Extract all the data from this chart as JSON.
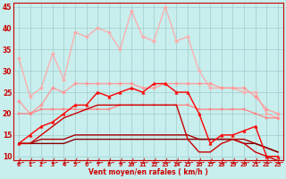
{
  "xlabel": "Vent moyen/en rafales ( km/h )",
  "xlim": [
    -0.5,
    23.5
  ],
  "ylim": [
    9,
    46
  ],
  "yticks": [
    10,
    15,
    20,
    25,
    30,
    35,
    40,
    45
  ],
  "xticks": [
    0,
    1,
    2,
    3,
    4,
    5,
    6,
    7,
    8,
    9,
    10,
    11,
    12,
    13,
    14,
    15,
    16,
    17,
    18,
    19,
    20,
    21,
    22,
    23
  ],
  "background_color": "#c8eeed",
  "grid_color": "#a0cccc",
  "lines": [
    {
      "color": "#ffaaaa",
      "y": [
        33,
        24,
        26,
        34,
        28,
        39,
        38,
        40,
        39,
        35,
        44,
        38,
        37,
        45,
        37,
        38,
        30,
        26,
        26,
        26,
        25,
        25,
        20,
        19
      ],
      "marker": "D",
      "markersize": 2.0,
      "linewidth": 0.9,
      "zorder": 3
    },
    {
      "color": "#ff9999",
      "y": [
        23,
        20,
        22,
        26,
        25,
        27,
        27,
        27,
        27,
        27,
        27,
        26,
        26,
        27,
        27,
        27,
        27,
        27,
        26,
        26,
        26,
        24,
        21,
        20
      ],
      "marker": "D",
      "markersize": 2.0,
      "linewidth": 0.9,
      "zorder": 3
    },
    {
      "color": "#ff8080",
      "y": [
        20,
        20,
        21,
        21,
        21,
        21,
        21,
        21,
        21,
        22,
        22,
        22,
        22,
        22,
        22,
        22,
        21,
        21,
        21,
        21,
        21,
        20,
        19,
        19
      ],
      "marker": "s",
      "markersize": 2.0,
      "linewidth": 0.9,
      "zorder": 3
    },
    {
      "color": "#ff0000",
      "y": [
        13,
        15,
        17,
        18,
        20,
        22,
        22,
        25,
        24,
        25,
        26,
        25,
        27,
        27,
        25,
        25,
        20,
        13,
        15,
        15,
        16,
        17,
        10,
        10
      ],
      "marker": "^",
      "markersize": 2.5,
      "linewidth": 1.0,
      "zorder": 4
    },
    {
      "color": "#cc0000",
      "y": [
        13,
        13,
        15,
        17,
        19,
        20,
        21,
        22,
        22,
        22,
        22,
        22,
        22,
        22,
        22,
        14,
        11,
        11,
        13,
        14,
        13,
        11,
        10,
        9
      ],
      "marker": null,
      "markersize": 0,
      "linewidth": 1.0,
      "zorder": 4
    },
    {
      "color": "#aa0000",
      "y": [
        13,
        13,
        14,
        14,
        14,
        15,
        15,
        15,
        15,
        15,
        15,
        15,
        15,
        15,
        15,
        15,
        14,
        14,
        14,
        14,
        14,
        13,
        12,
        11
      ],
      "marker": null,
      "markersize": 0,
      "linewidth": 1.0,
      "zorder": 2
    },
    {
      "color": "#880000",
      "y": [
        13,
        13,
        13,
        13,
        13,
        14,
        14,
        14,
        14,
        14,
        14,
        14,
        14,
        14,
        14,
        14,
        14,
        14,
        14,
        14,
        13,
        13,
        12,
        11
      ],
      "marker": null,
      "markersize": 0,
      "linewidth": 1.0,
      "zorder": 2
    }
  ],
  "arrow_color": "#cc0000",
  "axis_color": "#cc0000",
  "tick_fontsize": 5,
  "xlabel_fontsize": 5.5
}
